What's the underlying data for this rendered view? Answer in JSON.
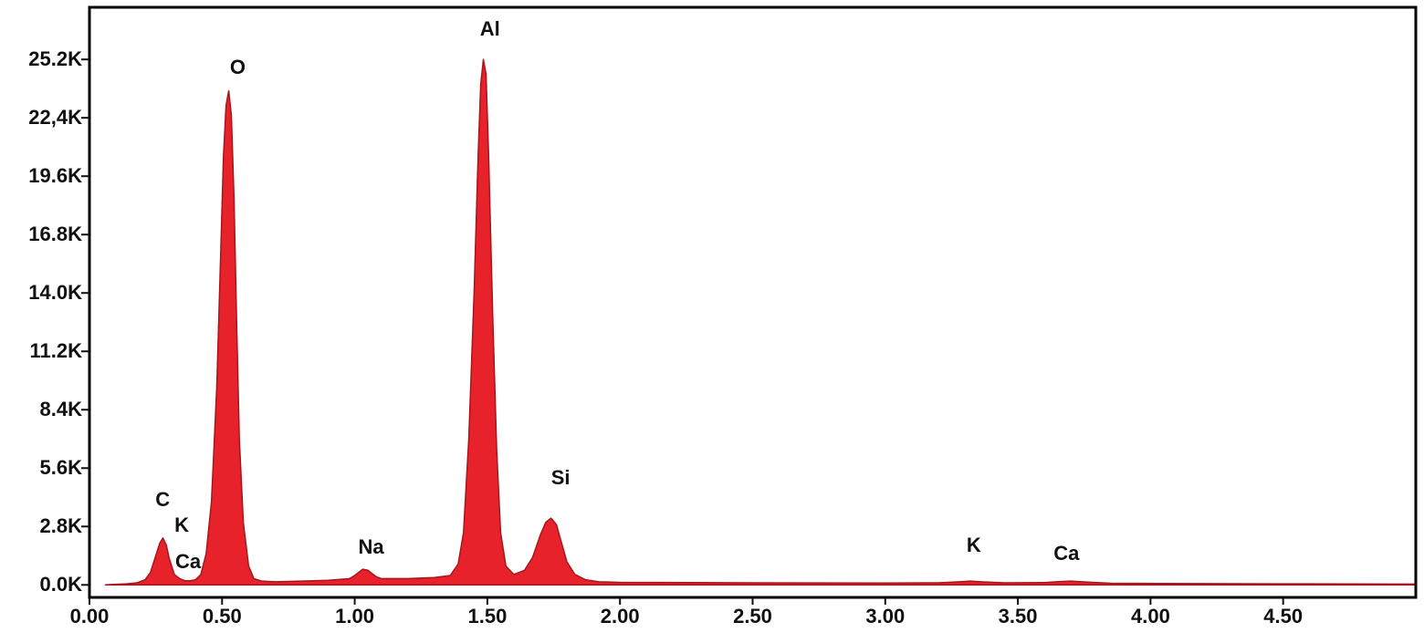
{
  "chart_data": {
    "type": "area",
    "x": [
      0.06,
      0.08,
      0.1,
      0.14,
      0.18,
      0.21,
      0.23,
      0.25,
      0.265,
      0.277,
      0.29,
      0.3,
      0.32,
      0.34,
      0.36,
      0.38,
      0.4,
      0.42,
      0.44,
      0.46,
      0.48,
      0.495,
      0.505,
      0.515,
      0.525,
      0.535,
      0.545,
      0.555,
      0.565,
      0.58,
      0.6,
      0.62,
      0.65,
      0.7,
      0.8,
      0.9,
      0.98,
      1.0,
      1.03,
      1.05,
      1.08,
      1.1,
      1.2,
      1.3,
      1.36,
      1.39,
      1.41,
      1.43,
      1.45,
      1.465,
      1.475,
      1.485,
      1.495,
      1.505,
      1.52,
      1.535,
      1.55,
      1.57,
      1.6,
      1.64,
      1.67,
      1.7,
      1.72,
      1.74,
      1.76,
      1.78,
      1.8,
      1.83,
      1.87,
      1.92,
      2.0,
      2.5,
      3.0,
      3.2,
      3.28,
      3.32,
      3.36,
      3.45,
      3.6,
      3.66,
      3.7,
      3.74,
      3.85,
      4.2,
      4.6,
      5.0
    ],
    "values": [
      0,
      20,
      30,
      50,
      100,
      250,
      600,
      1400,
      2000,
      2250,
      1900,
      1300,
      500,
      300,
      200,
      200,
      250,
      500,
      1500,
      4000,
      9500,
      16000,
      20500,
      23000,
      23700,
      22500,
      18500,
      12500,
      7000,
      3000,
      900,
      300,
      180,
      150,
      180,
      220,
      300,
      450,
      750,
      700,
      400,
      300,
      300,
      350,
      450,
      1000,
      2500,
      7000,
      14000,
      20500,
      24000,
      25200,
      24500,
      20500,
      13000,
      6500,
      2500,
      900,
      500,
      700,
      1300,
      2400,
      3000,
      3200,
      2900,
      2000,
      1100,
      500,
      250,
      150,
      120,
      100,
      90,
      100,
      150,
      180,
      150,
      100,
      110,
      160,
      180,
      150,
      80,
      60,
      50,
      40
    ],
    "color": "#e8222a",
    "xlim": [
      0,
      5.0
    ],
    "ylim": [
      -600,
      27700
    ],
    "xticks": [
      {
        "value": 0,
        "label": "0.00"
      },
      {
        "value": 0.5,
        "label": "0.50"
      },
      {
        "value": 1,
        "label": "1.00"
      },
      {
        "value": 1.5,
        "label": "1.50"
      },
      {
        "value": 2,
        "label": "2.00"
      },
      {
        "value": 2.5,
        "label": "2.50"
      },
      {
        "value": 3,
        "label": "3.00"
      },
      {
        "value": 3.5,
        "label": "3.50"
      },
      {
        "value": 4,
        "label": "4.00"
      },
      {
        "value": 4.5,
        "label": "4.50"
      }
    ],
    "yticks": [
      {
        "value": 0,
        "label": "0.0K"
      },
      {
        "value": 2800,
        "label": "2.8K"
      },
      {
        "value": 5600,
        "label": "5.6K"
      },
      {
        "value": 8400,
        "label": "8.4K"
      },
      {
        "value": 11200,
        "label": "11.2K"
      },
      {
        "value": 14000,
        "label": "14.0K"
      },
      {
        "value": 16800,
        "label": "16.8K"
      },
      {
        "value": 19600,
        "label": "19.6K"
      },
      {
        "value": 22400,
        "label": "22,4K"
      },
      {
        "value": 25200,
        "label": "25.2K"
      }
    ],
    "annotations": [
      {
        "text": "C",
        "x": 0.276,
        "y": 4030
      },
      {
        "text": "K",
        "x": 0.348,
        "y": 2800
      },
      {
        "text": "Ca",
        "x": 0.372,
        "y": 1050
      },
      {
        "text": "O",
        "x": 0.559,
        "y": 24760
      },
      {
        "text": "Na",
        "x": 1.062,
        "y": 1750
      },
      {
        "text": "Al",
        "x": 1.51,
        "y": 26600
      },
      {
        "text": "Si",
        "x": 1.776,
        "y": 5080
      },
      {
        "text": "K",
        "x": 3.334,
        "y": 1840
      },
      {
        "text": "Ca",
        "x": 3.683,
        "y": 1450
      }
    ]
  }
}
